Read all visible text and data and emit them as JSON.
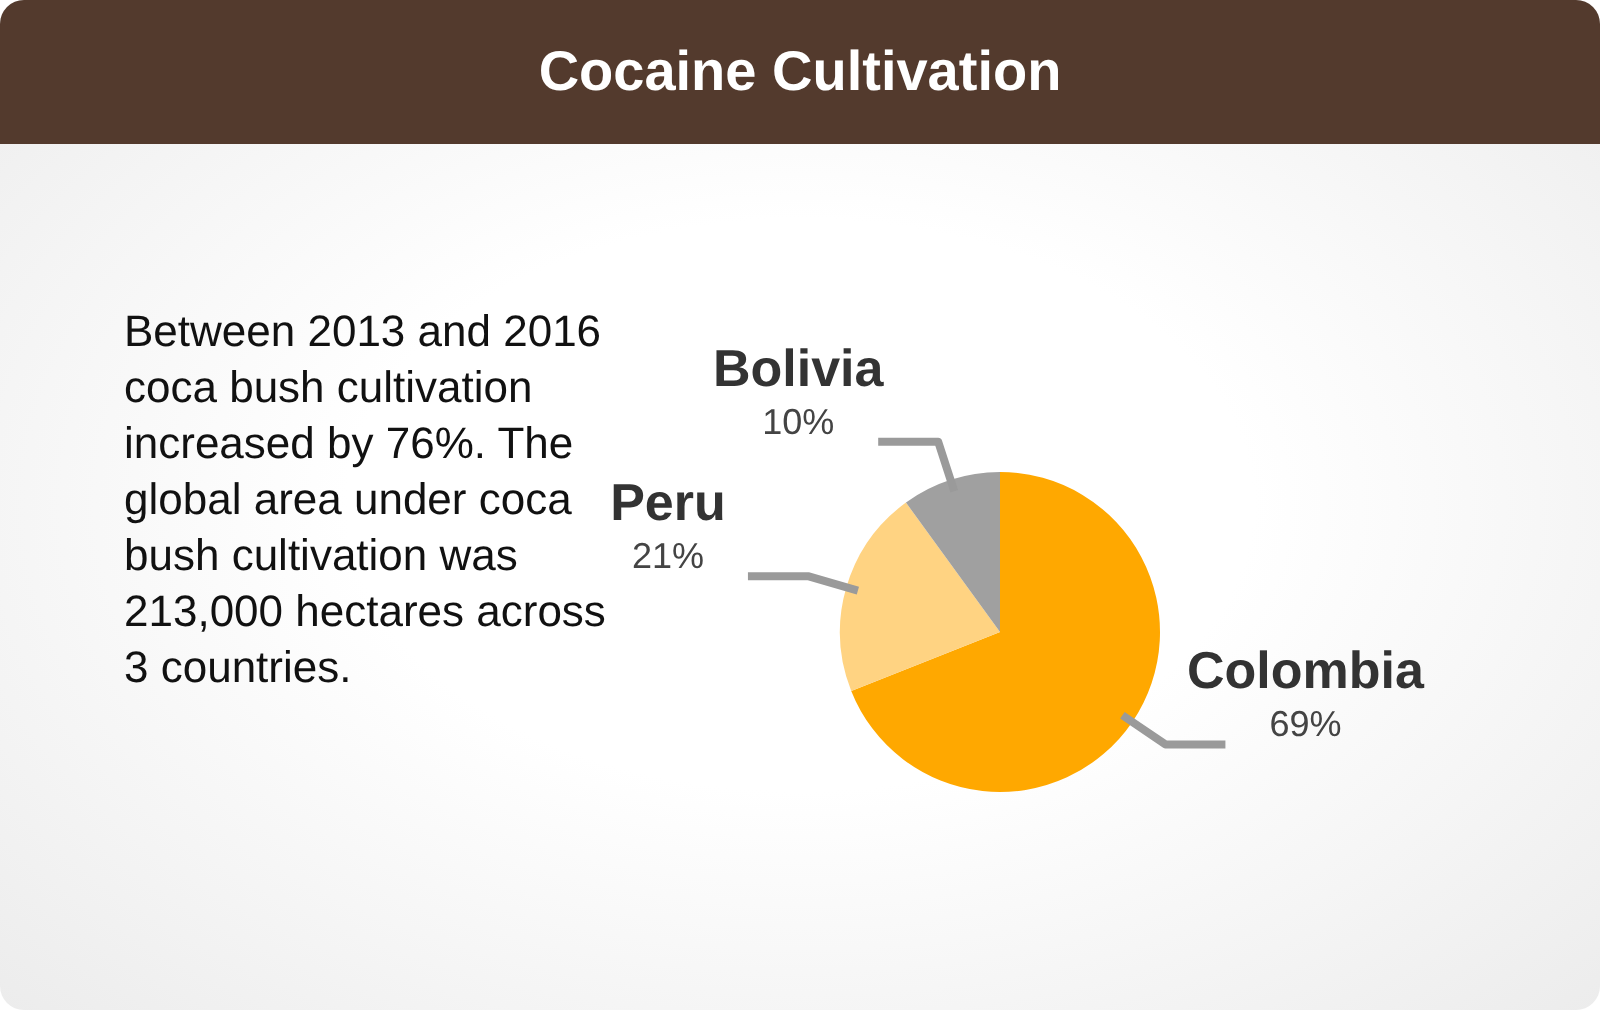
{
  "chart_data": {
    "type": "pie",
    "title": "Cocaine Cultivation",
    "categories": [
      "Colombia",
      "Peru",
      "Bolivia"
    ],
    "values": [
      69,
      21,
      10
    ],
    "colors": [
      "#ffa800",
      "#ffd382",
      "#a0a0a0"
    ],
    "value_labels": [
      "69%",
      "21%",
      "10%"
    ],
    "legend": false,
    "annotations": [
      "Between 2013 and 2016 coca bush cultivation increased by 76%. The global area under coca bush cultivation was 213,000 hectares across 3 countries."
    ]
  }
}
